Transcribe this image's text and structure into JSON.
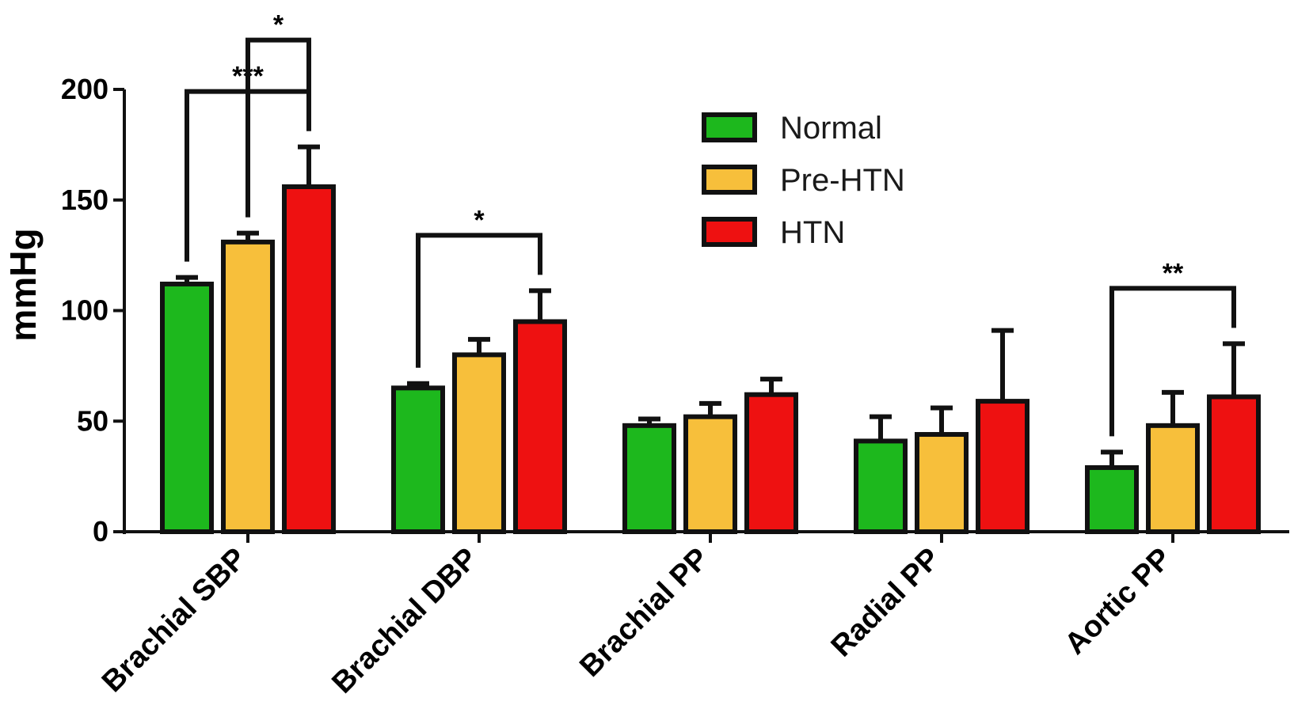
{
  "chart_data": {
    "type": "bar",
    "title": "",
    "xlabel": "",
    "ylabel": "mmHg",
    "ylim": [
      0,
      200
    ],
    "yticks": [
      0,
      50,
      100,
      150,
      200
    ],
    "grid": false,
    "legend_position": "top-right",
    "categories": [
      "Brachial SBP",
      "Brachial DBP",
      "Brachial PP",
      "Radial PP",
      "Aortic PP"
    ],
    "series": [
      {
        "name": "Normal",
        "color": "#1db81d",
        "values": [
          112,
          65,
          48,
          41,
          29
        ],
        "errors": [
          3,
          2,
          3,
          11,
          7
        ]
      },
      {
        "name": "Pre-HTN",
        "color": "#f7bf3b",
        "values": [
          131,
          80,
          52,
          44,
          48
        ],
        "errors": [
          4,
          7,
          6,
          12,
          15
        ]
      },
      {
        "name": "HTN",
        "color": "#ee1111",
        "values": [
          156,
          95,
          62,
          59,
          61
        ],
        "errors": [
          18,
          14,
          7,
          32,
          24
        ]
      }
    ],
    "significance": [
      {
        "category": "Brachial SBP",
        "from": "Normal",
        "to": "HTN",
        "label": "***"
      },
      {
        "category": "Brachial SBP",
        "from": "Pre-HTN",
        "to": "HTN",
        "label": "*"
      },
      {
        "category": "Brachial DBP",
        "from": "Normal",
        "to": "HTN",
        "label": "*"
      },
      {
        "category": "Aortic PP",
        "from": "Normal",
        "to": "HTN",
        "label": "**"
      }
    ]
  }
}
